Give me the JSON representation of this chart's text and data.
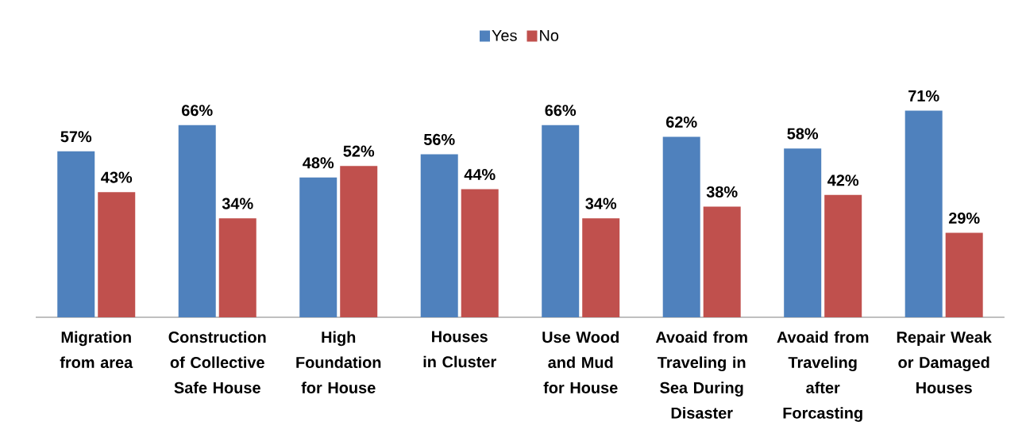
{
  "chart_data": {
    "type": "bar",
    "categories": [
      "Migration from area",
      "Construction of Collective Safe House",
      "High Foundation for House",
      "Houses in Cluster",
      "Use Wood and Mud for House",
      "Avoaid from Traveling in Sea During Disaster",
      "Avoaid from Traveling after Forcasting",
      "Repair Weak or Damaged Houses"
    ],
    "series": [
      {
        "name": "Yes",
        "color": "#4f81bd",
        "values": [
          57,
          66,
          48,
          56,
          66,
          62,
          58,
          71
        ],
        "value_labels": [
          "57%",
          "66%",
          "48%",
          "56%",
          "66%",
          "62%",
          "58%",
          "71%"
        ]
      },
      {
        "name": "No",
        "color": "#c0504d",
        "values": [
          43,
          34,
          52,
          44,
          34,
          38,
          42,
          29
        ],
        "value_labels": [
          "43%",
          "34%",
          "52%",
          "44%",
          "34%",
          "38%",
          "42%",
          "29%"
        ]
      }
    ],
    "legend": "top"
  }
}
